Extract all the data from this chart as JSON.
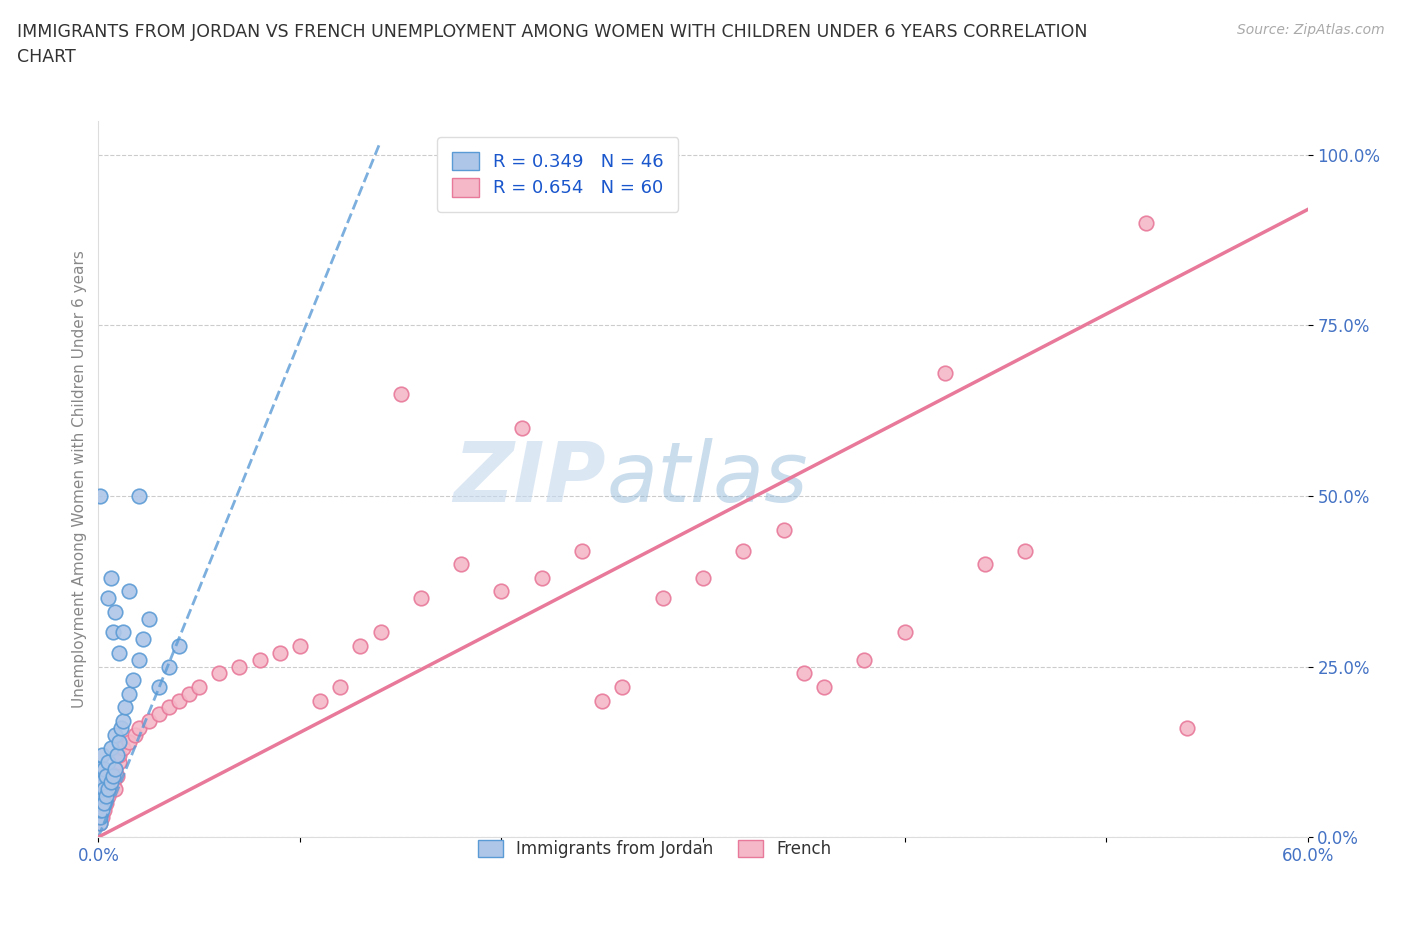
{
  "title": "IMMIGRANTS FROM JORDAN VS FRENCH UNEMPLOYMENT AMONG WOMEN WITH CHILDREN UNDER 6 YEARS CORRELATION\nCHART",
  "source": "Source: ZipAtlas.com",
  "ylabel": "Unemployment Among Women with Children Under 6 years",
  "watermark": "ZIPatlas",
  "jordan_color": "#aec6e8",
  "jordan_edge": "#5b9bd5",
  "french_color": "#f4b8c8",
  "french_edge": "#e8799a",
  "jordan_line_color": "#5b9bd5",
  "french_line_color": "#e8799a",
  "jordan_R": 0.349,
  "jordan_N": 46,
  "french_R": 0.654,
  "french_N": 60,
  "legend_color": "#1a56cc",
  "tick_color": "#4472c4",
  "xlim": [
    0.0,
    0.6
  ],
  "ylim": [
    0.0,
    1.05
  ],
  "ytick_vals": [
    0.0,
    0.25,
    0.5,
    0.75,
    1.0
  ],
  "ytick_labels": [
    "0.0%",
    "25.0%",
    "50.0%",
    "75.0%",
    "100.0%"
  ],
  "xtick_vals": [
    0.0,
    0.1,
    0.2,
    0.3,
    0.4,
    0.5,
    0.6
  ],
  "xtick_labels": [
    "0.0%",
    "",
    "",
    "",
    "",
    "",
    "60.0%"
  ],
  "jordan_x": [
    0.001,
    0.001,
    0.001,
    0.001,
    0.001,
    0.001,
    0.001,
    0.001,
    0.002,
    0.002,
    0.002,
    0.002,
    0.003,
    0.003,
    0.003,
    0.004,
    0.004,
    0.005,
    0.005,
    0.006,
    0.006,
    0.007,
    0.008,
    0.008,
    0.009,
    0.01,
    0.011,
    0.012,
    0.013,
    0.015,
    0.017,
    0.02,
    0.022,
    0.025,
    0.03,
    0.035,
    0.04,
    0.005,
    0.006,
    0.007,
    0.008,
    0.01,
    0.012,
    0.015,
    0.02,
    0.001
  ],
  "jordan_y": [
    0.02,
    0.03,
    0.04,
    0.05,
    0.06,
    0.07,
    0.08,
    0.1,
    0.04,
    0.06,
    0.08,
    0.12,
    0.05,
    0.07,
    0.1,
    0.06,
    0.09,
    0.07,
    0.11,
    0.08,
    0.13,
    0.09,
    0.1,
    0.15,
    0.12,
    0.14,
    0.16,
    0.17,
    0.19,
    0.21,
    0.23,
    0.26,
    0.29,
    0.32,
    0.22,
    0.25,
    0.28,
    0.35,
    0.38,
    0.3,
    0.33,
    0.27,
    0.3,
    0.36,
    0.5,
    0.5
  ],
  "french_x": [
    0.001,
    0.001,
    0.001,
    0.002,
    0.002,
    0.002,
    0.003,
    0.003,
    0.004,
    0.004,
    0.005,
    0.005,
    0.006,
    0.007,
    0.008,
    0.008,
    0.009,
    0.01,
    0.01,
    0.012,
    0.015,
    0.018,
    0.02,
    0.025,
    0.03,
    0.035,
    0.04,
    0.045,
    0.05,
    0.06,
    0.07,
    0.08,
    0.09,
    0.1,
    0.11,
    0.12,
    0.13,
    0.14,
    0.15,
    0.16,
    0.18,
    0.2,
    0.21,
    0.22,
    0.24,
    0.25,
    0.26,
    0.28,
    0.3,
    0.32,
    0.34,
    0.35,
    0.36,
    0.38,
    0.4,
    0.42,
    0.44,
    0.46,
    0.52,
    0.54
  ],
  "french_y": [
    0.02,
    0.03,
    0.05,
    0.03,
    0.04,
    0.06,
    0.04,
    0.07,
    0.05,
    0.08,
    0.06,
    0.09,
    0.07,
    0.08,
    0.07,
    0.1,
    0.09,
    0.11,
    0.12,
    0.13,
    0.14,
    0.15,
    0.16,
    0.17,
    0.18,
    0.19,
    0.2,
    0.21,
    0.22,
    0.24,
    0.25,
    0.26,
    0.27,
    0.28,
    0.2,
    0.22,
    0.28,
    0.3,
    0.65,
    0.35,
    0.4,
    0.36,
    0.6,
    0.38,
    0.42,
    0.2,
    0.22,
    0.35,
    0.38,
    0.42,
    0.45,
    0.24,
    0.22,
    0.26,
    0.3,
    0.68,
    0.4,
    0.42,
    0.9,
    0.16
  ],
  "jordan_trend_x": [
    0.0,
    0.14
  ],
  "jordan_trend_y": [
    0.0,
    1.02
  ],
  "french_trend_x": [
    0.0,
    0.6
  ],
  "french_trend_y": [
    0.0,
    0.92
  ],
  "background_color": "#ffffff",
  "grid_color": "#cccccc",
  "title_color": "#333333",
  "axis_label_color": "#888888",
  "spine_color": "#dddddd"
}
